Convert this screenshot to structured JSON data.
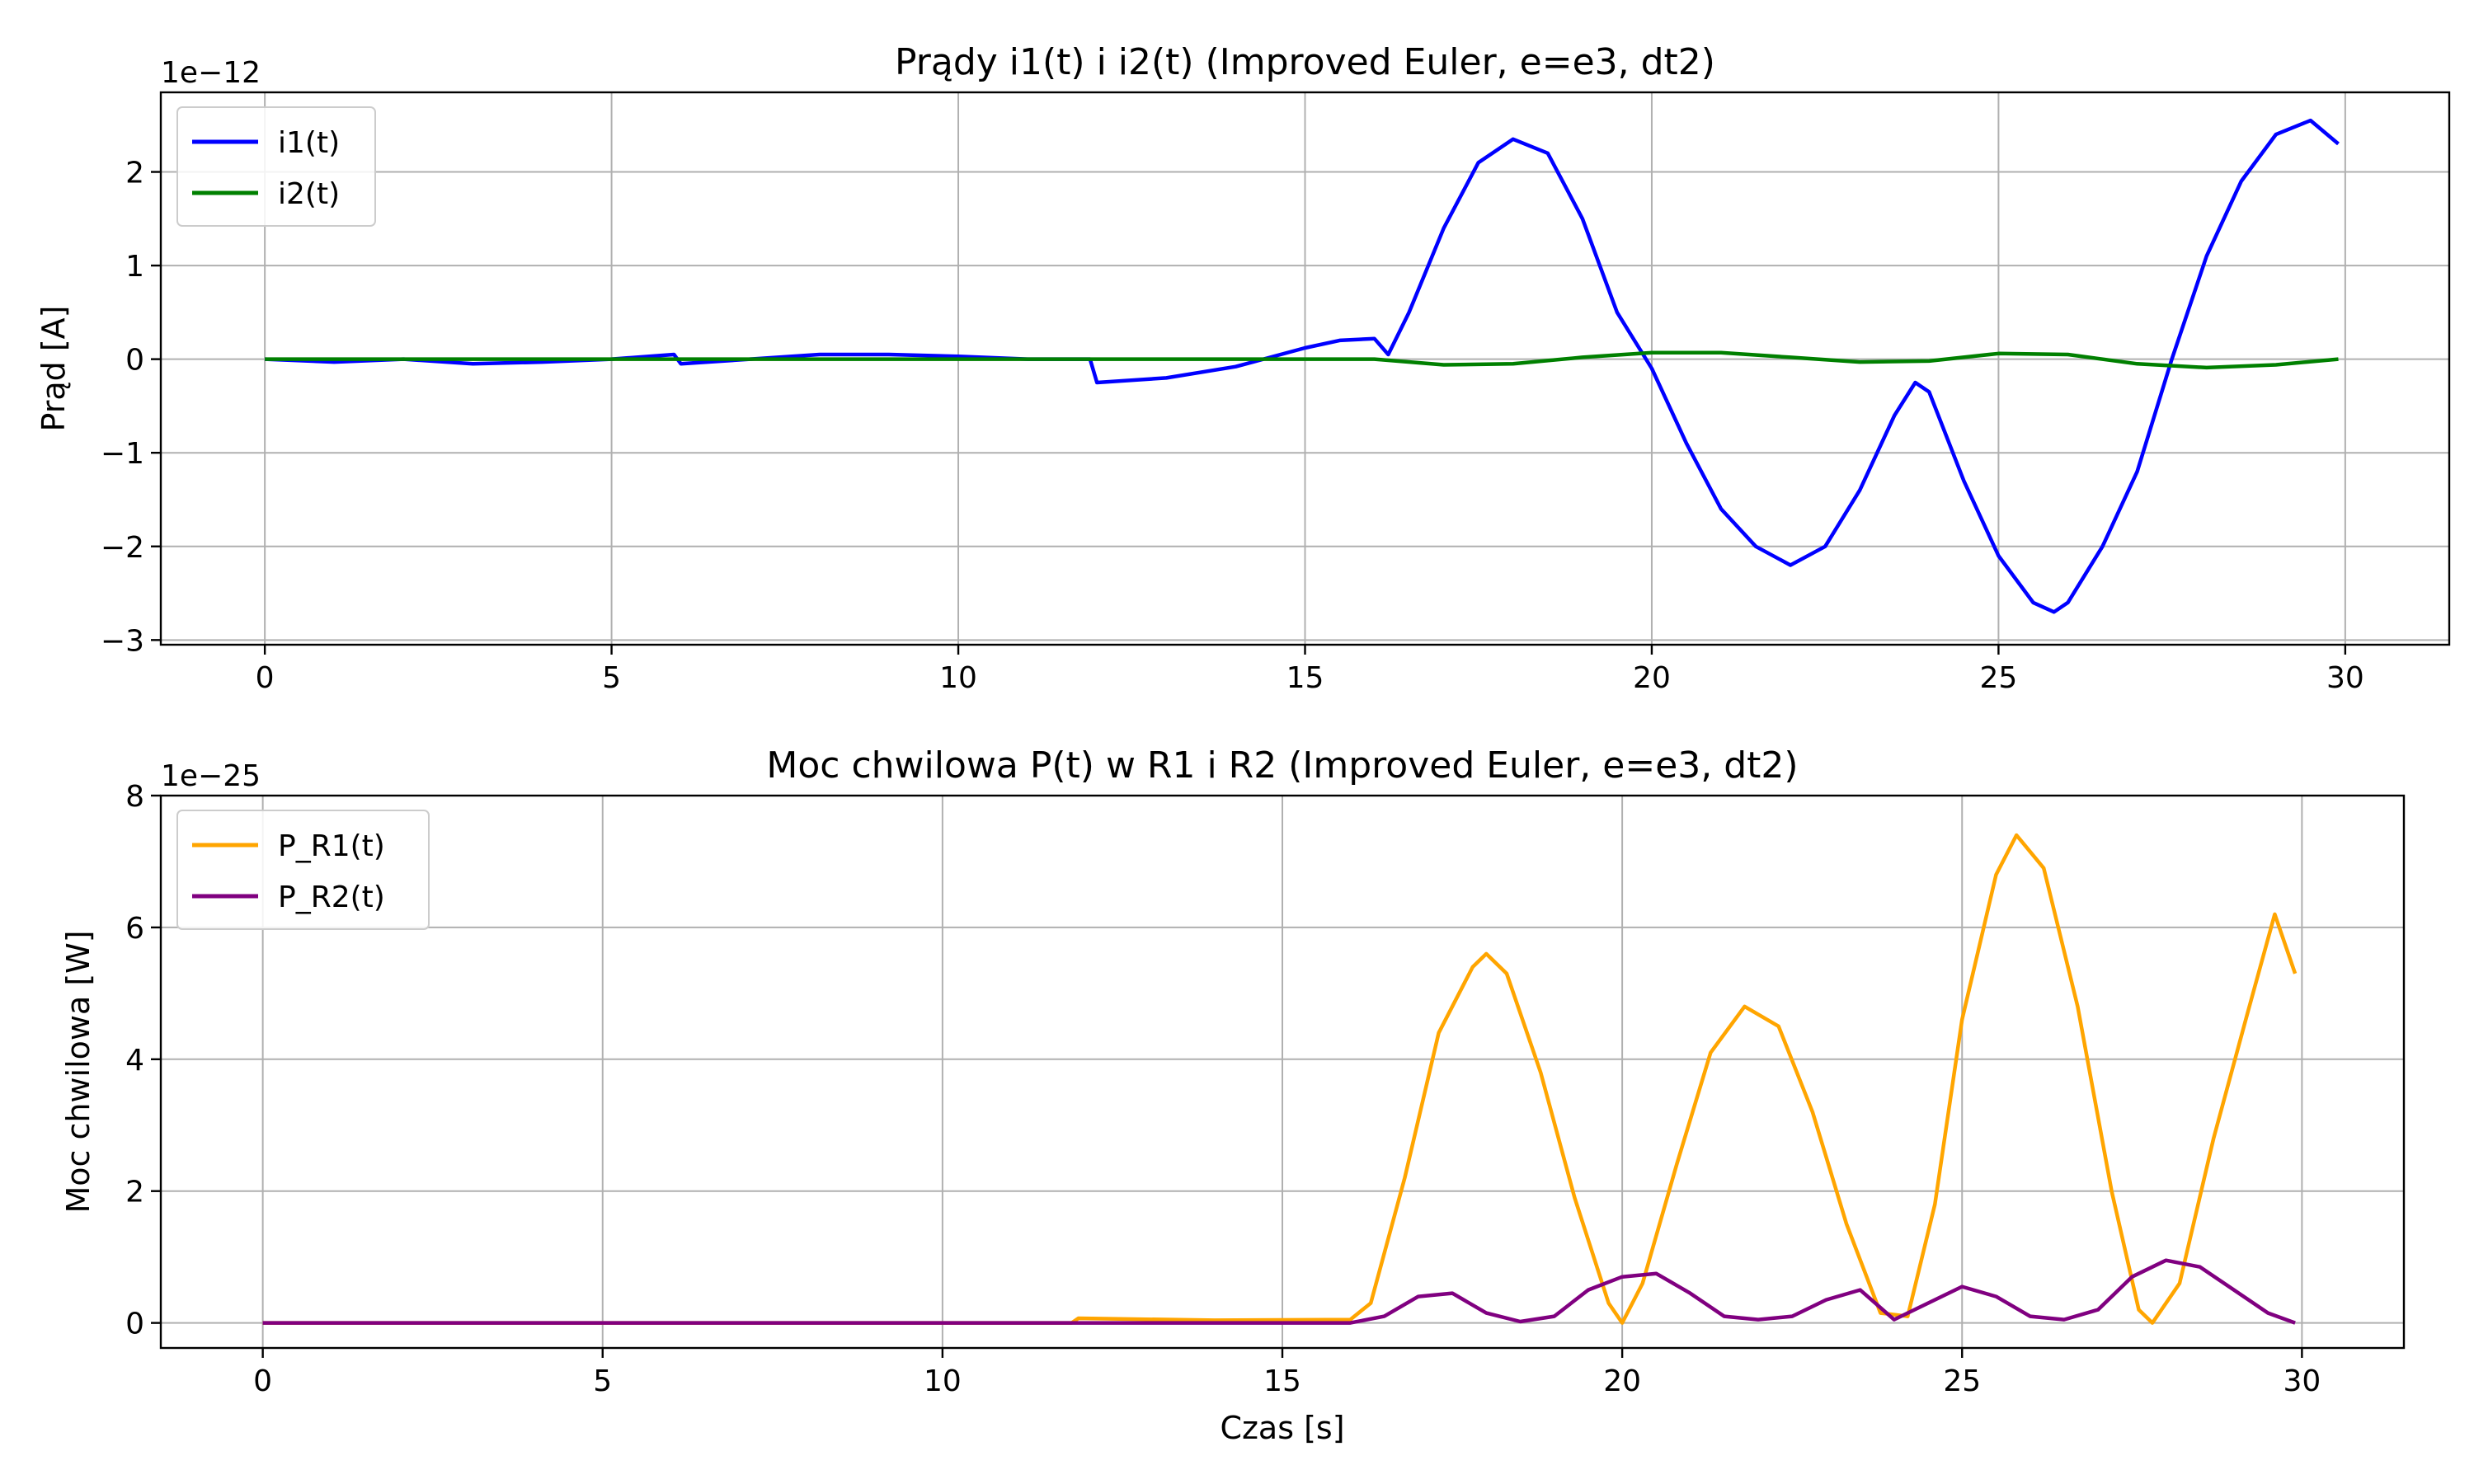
{
  "chart_data": [
    {
      "type": "line",
      "title": "Prądy i1(t) i i2(t) (Improved Euler, e=e3, dt2)",
      "xlabel": "",
      "ylabel": "Prąd [A]",
      "y_offset_label": "1e−12",
      "xlim": [
        -1.5,
        31.5
      ],
      "ylim": [
        -3.05,
        2.85
      ],
      "xticks": [
        0,
        5,
        10,
        15,
        20,
        25,
        30
      ],
      "yticks": [
        -3,
        -2,
        -1,
        0,
        1,
        2
      ],
      "grid": true,
      "legend_position": "top-left",
      "series": [
        {
          "name": "i1(t)",
          "color": "#0000ff",
          "x": [
            0,
            1,
            2,
            3,
            4,
            5,
            5.9,
            6,
            7,
            8,
            9,
            10,
            11,
            11.9,
            12,
            13,
            14,
            15,
            15.5,
            16,
            16.2,
            16.5,
            17,
            17.5,
            18,
            18.5,
            19,
            19.5,
            20,
            20.5,
            21,
            21.5,
            22,
            22.5,
            23,
            23.5,
            23.8,
            24,
            24.5,
            25,
            25.5,
            25.8,
            26,
            26.5,
            27,
            27.5,
            28,
            28.5,
            29,
            29.5,
            29.9
          ],
          "y": [
            0,
            -0.03,
            0,
            -0.05,
            -0.03,
            0,
            0.05,
            -0.05,
            0,
            0.05,
            0.05,
            0.03,
            0,
            0,
            -0.25,
            -0.2,
            -0.08,
            0.12,
            0.2,
            0.22,
            0.05,
            0.5,
            1.4,
            2.1,
            2.35,
            2.2,
            1.5,
            0.5,
            -0.1,
            -0.9,
            -1.6,
            -2.0,
            -2.2,
            -2.0,
            -1.4,
            -0.6,
            -0.25,
            -0.35,
            -1.3,
            -2.1,
            -2.6,
            -2.7,
            -2.6,
            -2.0,
            -1.2,
            0.0,
            1.1,
            1.9,
            2.4,
            2.55,
            2.3
          ]
        },
        {
          "name": "i2(t)",
          "color": "#008000",
          "x": [
            0,
            2,
            4,
            6,
            8,
            10,
            12,
            14,
            16,
            17,
            18,
            19,
            20,
            21,
            22,
            23,
            24,
            25,
            26,
            27,
            28,
            29,
            29.9
          ],
          "y": [
            0,
            0,
            0,
            0,
            0,
            0,
            0,
            0,
            0,
            -0.06,
            -0.05,
            0.02,
            0.07,
            0.07,
            0.02,
            -0.03,
            -0.02,
            0.06,
            0.05,
            -0.05,
            -0.09,
            -0.06,
            0
          ]
        }
      ]
    },
    {
      "type": "line",
      "title": "Moc chwilowa P(t) w R1 i R2 (Improved Euler, e=e3, dt2)",
      "xlabel": "Czas [s]",
      "ylabel": "Moc chwilowa [W]",
      "y_offset_label": "1e−25",
      "xlim": [
        -1.5,
        31.5
      ],
      "ylim": [
        -0.38,
        8.0
      ],
      "xticks": [
        0,
        5,
        10,
        15,
        20,
        25,
        30
      ],
      "yticks": [
        0,
        2,
        4,
        6,
        8
      ],
      "grid": true,
      "legend_position": "top-left",
      "series": [
        {
          "name": "P_R1(t)",
          "color": "#ffa500",
          "x": [
            0,
            5,
            10,
            11.9,
            12,
            14,
            16,
            16.3,
            16.8,
            17.3,
            17.8,
            18.0,
            18.3,
            18.8,
            19.3,
            19.8,
            20,
            20.3,
            20.8,
            21.3,
            21.8,
            22.3,
            22.8,
            23.3,
            23.8,
            24.2,
            24.6,
            25.0,
            25.5,
            25.8,
            26.2,
            26.7,
            27.2,
            27.6,
            27.8,
            28.2,
            28.7,
            29.2,
            29.6,
            29.9
          ],
          "y": [
            0,
            0,
            0,
            0,
            0.07,
            0.04,
            0.05,
            0.3,
            2.2,
            4.4,
            5.4,
            5.6,
            5.3,
            3.8,
            1.9,
            0.3,
            0,
            0.6,
            2.4,
            4.1,
            4.8,
            4.5,
            3.2,
            1.5,
            0.15,
            0.1,
            1.8,
            4.6,
            6.8,
            7.4,
            6.9,
            4.8,
            2.0,
            0.2,
            0,
            0.6,
            2.8,
            4.7,
            6.2,
            5.3
          ]
        },
        {
          "name": "P_R2(t)",
          "color": "#800080",
          "x": [
            0,
            5,
            10,
            14,
            16,
            16.5,
            17,
            17.5,
            18,
            18.5,
            19,
            19.5,
            20,
            20.5,
            21,
            21.5,
            22,
            22.5,
            23,
            23.5,
            24,
            24.5,
            25,
            25.5,
            26,
            26.5,
            27,
            27.5,
            28,
            28.5,
            29,
            29.5,
            29.9
          ],
          "y": [
            0,
            0,
            0,
            0,
            0,
            0.1,
            0.4,
            0.45,
            0.15,
            0.02,
            0.1,
            0.5,
            0.7,
            0.75,
            0.45,
            0.1,
            0.05,
            0.1,
            0.35,
            0.5,
            0.05,
            0.3,
            0.55,
            0.4,
            0.1,
            0.05,
            0.2,
            0.7,
            0.95,
            0.85,
            0.5,
            0.15,
            0
          ]
        }
      ]
    }
  ]
}
